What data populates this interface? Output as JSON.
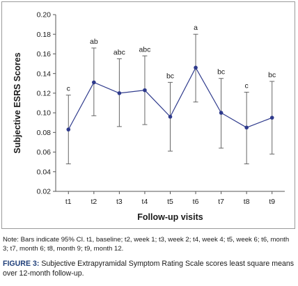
{
  "chart_data": {
    "type": "line",
    "x": [
      "t1",
      "t2",
      "t3",
      "t4",
      "t5",
      "t6",
      "t7",
      "t8",
      "t9"
    ],
    "series": [
      {
        "values": [
          0.083,
          0.131,
          0.12,
          0.123,
          0.096,
          0.146,
          0.1,
          0.085,
          0.095
        ],
        "ci_lower": [
          0.048,
          0.097,
          0.086,
          0.088,
          0.061,
          0.111,
          0.064,
          0.048,
          0.058
        ],
        "ci_upper": [
          0.118,
          0.166,
          0.155,
          0.158,
          0.131,
          0.18,
          0.135,
          0.121,
          0.132
        ],
        "letters": [
          "c",
          "ab",
          "abc",
          "abc",
          "bc",
          "a",
          "bc",
          "c",
          "bc"
        ],
        "color": "#2e3a8c"
      }
    ],
    "yticks": [
      "0.02",
      "0.04",
      "0.06",
      "0.08",
      "0.10",
      "0.12",
      "0.14",
      "0.16",
      "0.18",
      "0.20"
    ],
    "ylim": [
      0.02,
      0.2
    ],
    "xlabel": "Follow-up visits",
    "ylabel": "Subjective ESRS Scores",
    "grid": false
  },
  "note": "Note: Bars indicate 95% CI. t1, baseline; t2, week 1; t3, week 2; t4, week 4; t5, week 6; t6, month 3; t7, month 6; t8, month 9; t9, month 12.",
  "caption": {
    "label": "FIGURE 3:",
    "text": " Subjective Extrapyramidal Symptom Rating Scale scores least square means over 12-month follow-up."
  }
}
